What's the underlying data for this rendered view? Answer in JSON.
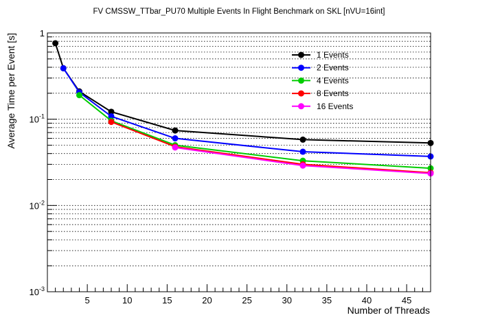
{
  "chart_data": {
    "type": "line",
    "title": "FV CMSSW_TTbar_PU70 Multiple Events In Flight Benchmark on SKL [nVU=16int]",
    "xlabel": "Number of Threads",
    "ylabel": "Average Time per Event [s]",
    "xlim": [
      0,
      48
    ],
    "ylim": [
      0.001,
      1
    ],
    "yscale": "log",
    "x_ticks": [
      5,
      10,
      15,
      20,
      25,
      30,
      35,
      40,
      45
    ],
    "y_ticks": [
      {
        "value": 0.001,
        "mant": "10",
        "exp": "-3"
      },
      {
        "value": 0.01,
        "mant": "10",
        "exp": "-2"
      },
      {
        "value": 0.1,
        "mant": "10",
        "exp": "-1"
      },
      {
        "value": 1,
        "mant": "1",
        "exp": ""
      }
    ],
    "grid": "y",
    "legend_position": "top-right",
    "series": [
      {
        "name": "1 Events",
        "color": "#000000",
        "x": [
          1,
          2,
          4,
          8,
          16,
          32,
          48
        ],
        "y": [
          0.76,
          0.39,
          0.21,
          0.122,
          0.074,
          0.058,
          0.053
        ]
      },
      {
        "name": "2 Events",
        "color": "#0000ff",
        "x": [
          2,
          4,
          8,
          16,
          32,
          48
        ],
        "y": [
          0.39,
          0.205,
          0.108,
          0.06,
          0.042,
          0.037
        ]
      },
      {
        "name": "4 Events",
        "color": "#00cc00",
        "x": [
          4,
          8,
          16,
          32,
          48
        ],
        "y": [
          0.19,
          0.096,
          0.05,
          0.033,
          0.027
        ]
      },
      {
        "name": "8 Events",
        "color": "#ff0000",
        "x": [
          8,
          16,
          32,
          48
        ],
        "y": [
          0.093,
          0.048,
          0.03,
          0.024
        ]
      },
      {
        "name": "16 Events",
        "color": "#ff00ff",
        "x": [
          16,
          32,
          48
        ],
        "y": [
          0.047,
          0.029,
          0.0235
        ]
      }
    ]
  }
}
